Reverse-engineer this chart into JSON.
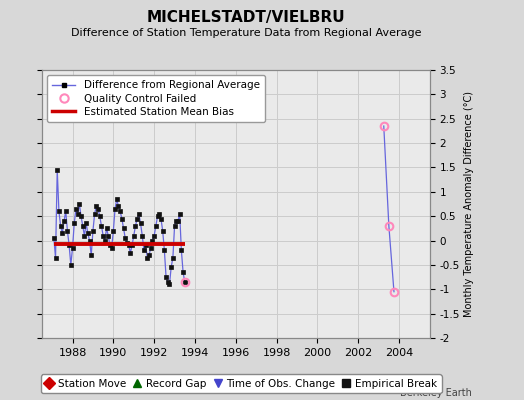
{
  "title": "MICHELSTADT/VIELBRU",
  "subtitle": "Difference of Station Temperature Data from Regional Average",
  "ylabel_right": "Monthly Temperature Anomaly Difference (°C)",
  "watermark": "Berkeley Earth",
  "xlim": [
    1986.5,
    2005.5
  ],
  "ylim": [
    -2.0,
    3.5
  ],
  "yticks": [
    -2,
    -1.5,
    -1,
    -0.5,
    0,
    0.5,
    1,
    1.5,
    2,
    2.5,
    3,
    3.5
  ],
  "xticks": [
    1988,
    1990,
    1992,
    1994,
    1996,
    1998,
    2000,
    2002,
    2004
  ],
  "bg_color": "#d8d8d8",
  "plot_bg_color": "#eaeaea",
  "main_line_color": "#6666dd",
  "main_marker_color": "#111111",
  "bias_line_color": "#cc0000",
  "qc_color": "#ff88bb",
  "main_data_x": [
    1987.083,
    1987.167,
    1987.25,
    1987.333,
    1987.417,
    1987.5,
    1987.583,
    1987.667,
    1987.75,
    1987.833,
    1987.917,
    1988.0,
    1988.083,
    1988.167,
    1988.25,
    1988.333,
    1988.417,
    1988.5,
    1988.583,
    1988.667,
    1988.75,
    1988.833,
    1988.917,
    1989.0,
    1989.083,
    1989.167,
    1989.25,
    1989.333,
    1989.417,
    1989.5,
    1989.583,
    1989.667,
    1989.75,
    1989.833,
    1989.917,
    1990.0,
    1990.083,
    1990.167,
    1990.25,
    1990.333,
    1990.417,
    1990.5,
    1990.583,
    1990.667,
    1990.75,
    1990.833,
    1990.917,
    1991.0,
    1991.083,
    1991.167,
    1991.25,
    1991.333,
    1991.417,
    1991.5,
    1991.583,
    1991.667,
    1991.75,
    1991.833,
    1991.917,
    1992.0,
    1992.083,
    1992.167,
    1992.25,
    1992.333,
    1992.417,
    1992.5,
    1992.583,
    1992.667,
    1992.75,
    1992.833,
    1992.917,
    1993.0,
    1993.083,
    1993.167,
    1993.25,
    1993.333,
    1993.417,
    1993.5
  ],
  "main_data_y": [
    0.05,
    -0.35,
    1.45,
    0.6,
    0.3,
    0.15,
    0.4,
    0.6,
    0.2,
    -0.1,
    -0.5,
    -0.15,
    0.35,
    0.65,
    0.55,
    0.75,
    0.5,
    0.3,
    0.1,
    0.35,
    0.15,
    0.0,
    -0.3,
    0.2,
    0.55,
    0.7,
    0.65,
    0.5,
    0.3,
    0.1,
    0.0,
    0.25,
    0.1,
    -0.1,
    -0.15,
    0.2,
    0.65,
    0.85,
    0.7,
    0.6,
    0.45,
    0.25,
    0.05,
    -0.05,
    -0.1,
    -0.25,
    -0.1,
    0.1,
    0.3,
    0.45,
    0.55,
    0.35,
    0.1,
    -0.2,
    -0.1,
    -0.35,
    -0.3,
    -0.15,
    0.0,
    0.1,
    0.3,
    0.5,
    0.55,
    0.45,
    0.2,
    -0.2,
    -0.75,
    -0.85,
    -0.9,
    -0.55,
    -0.35,
    0.3,
    0.4,
    0.4,
    0.55,
    -0.2,
    -0.65,
    -0.85
  ],
  "bias_x_start": 1987.083,
  "bias_x_end": 1993.5,
  "bias_y": -0.08,
  "qc_data_x": [
    1993.5,
    2003.25,
    2003.5,
    2003.75
  ],
  "qc_data_y": [
    -0.85,
    2.35,
    0.3,
    -1.05
  ],
  "qc_line_x": [
    2003.25,
    2003.5,
    2003.75
  ],
  "qc_line_y": [
    2.35,
    0.3,
    -1.05
  ],
  "grid_color": "#cccccc",
  "legend_items": [
    {
      "label": "Difference from Regional Average"
    },
    {
      "label": "Quality Control Failed"
    },
    {
      "label": "Estimated Station Mean Bias"
    }
  ],
  "bottom_legend": [
    {
      "label": "Station Move",
      "marker": "D",
      "color": "#cc0000"
    },
    {
      "label": "Record Gap",
      "marker": "^",
      "color": "#006600"
    },
    {
      "label": "Time of Obs. Change",
      "marker": "v",
      "color": "#4444cc"
    },
    {
      "label": "Empirical Break",
      "marker": "s",
      "color": "#111111"
    }
  ]
}
